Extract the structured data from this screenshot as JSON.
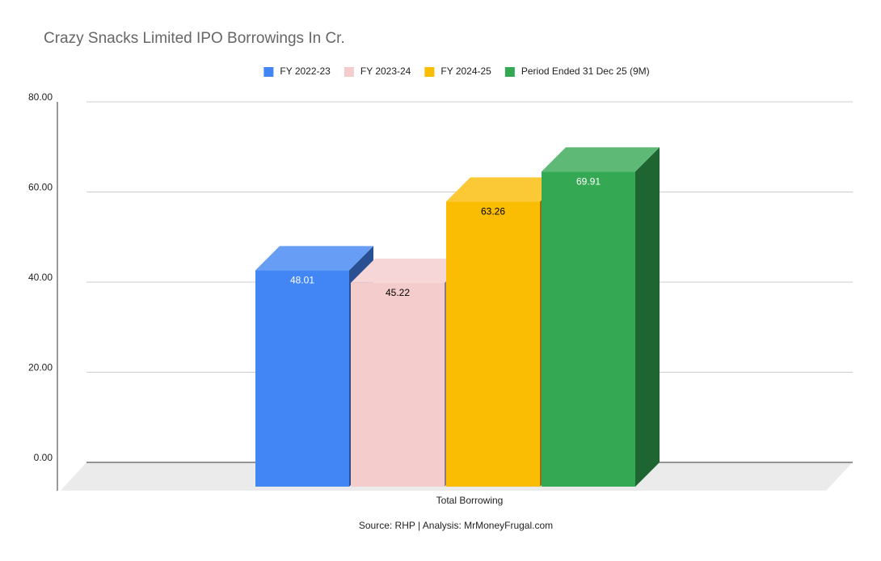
{
  "chart_data": {
    "type": "bar3d",
    "title": "Crazy Snacks Limited IPO Borrowings In Cr.",
    "categories": [
      "Total Borrowing"
    ],
    "series": [
      {
        "name": "FY 2022-23",
        "color": "#4285f4",
        "values": [
          48.01
        ]
      },
      {
        "name": "FY 2023-24",
        "color": "#f4cccc",
        "values": [
          45.22
        ]
      },
      {
        "name": "FY 2024-25",
        "color": "#fbbc04",
        "values": [
          63.26
        ]
      },
      {
        "name": "Period Ended 31 Dec 25 (9M)",
        "color": "#34a853",
        "values": [
          69.91
        ]
      }
    ],
    "ylim": [
      0,
      80
    ],
    "yticks": [
      {
        "value": 0,
        "label": "0.00"
      },
      {
        "value": 20,
        "label": "20.00"
      },
      {
        "value": 40,
        "label": "40.00"
      },
      {
        "value": 60,
        "label": "60.00"
      },
      {
        "value": 80,
        "label": "80.00"
      }
    ],
    "grid": true,
    "legend": "top",
    "source": "Source: RHP | Analysis: MrMoneyFrugal.com"
  }
}
